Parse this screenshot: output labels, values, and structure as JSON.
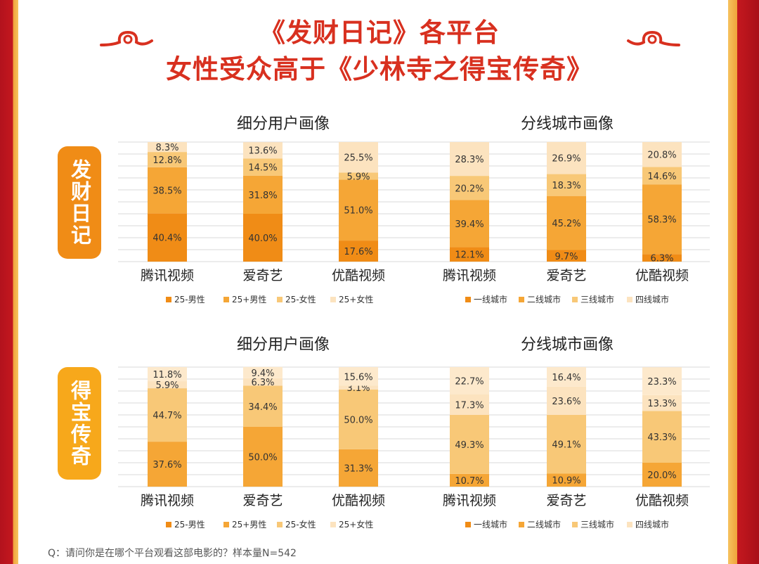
{
  "title": {
    "line1": "《发财日记》各平台",
    "line2": "女性受众高于《少林寺之得宝传奇》"
  },
  "films": [
    {
      "name": "发财日记",
      "color": "#f08c16"
    },
    {
      "name": "得宝传奇",
      "color": "#f7a81b"
    }
  ],
  "palette": [
    "#f08c16",
    "#f5a636",
    "#f8c877",
    "#fce3bf"
  ],
  "legend_colors": [
    "#f08c16",
    "#f5a636",
    "#f8c877",
    "#fce3bf"
  ],
  "footnote": "Q：请问你是在哪个平台观看这部电影的？样本量N=542",
  "chart_data": [
    {
      "type": "bar",
      "stacked": true,
      "title": "细分用户画像",
      "film": "发财日记",
      "categories": [
        "腾讯视频",
        "爱奇艺",
        "优酷视频"
      ],
      "series": [
        {
          "name": "25-男性",
          "values": [
            40.4,
            40.0,
            17.6
          ]
        },
        {
          "name": "25+男性",
          "values": [
            38.5,
            31.8,
            51.0
          ]
        },
        {
          "name": "25-女性",
          "values": [
            12.8,
            14.5,
            5.9
          ]
        },
        {
          "name": "25+女性",
          "values": [
            8.3,
            13.6,
            25.5
          ]
        }
      ],
      "labels": [
        [
          "40.4%",
          "38.5%",
          "12.8%",
          "8.3%"
        ],
        [
          "40.0%",
          "31.8%",
          "14.5%",
          "13.6%"
        ],
        [
          "17.6%",
          "51.0%",
          "5.9%",
          "25.5%"
        ]
      ],
      "ylim": [
        0,
        100
      ],
      "grid": true,
      "legend": "bottom"
    },
    {
      "type": "bar",
      "stacked": true,
      "title": "分线城市画像",
      "film": "发财日记",
      "categories": [
        "腾讯视频",
        "爱奇艺",
        "优酷视频"
      ],
      "series": [
        {
          "name": "一线城市",
          "values": [
            12.1,
            9.7,
            6.3
          ]
        },
        {
          "name": "二线城市",
          "values": [
            39.4,
            45.2,
            58.3
          ]
        },
        {
          "name": "三线城市",
          "values": [
            20.2,
            18.3,
            14.6
          ]
        },
        {
          "name": "四线城市",
          "values": [
            28.3,
            26.9,
            20.8
          ]
        }
      ],
      "labels": [
        [
          "12.1%",
          "39.4%",
          "20.2%",
          "28.3%"
        ],
        [
          "9.7%",
          "45.2%",
          "18.3%",
          "26.9%"
        ],
        [
          "6.3%",
          "58.3%",
          "14.6%",
          "20.8%"
        ]
      ],
      "ylim": [
        0,
        100
      ],
      "grid": true,
      "legend": "bottom"
    },
    {
      "type": "bar",
      "stacked": true,
      "title": "细分用户画像",
      "film": "得宝传奇",
      "categories": [
        "腾讯视频",
        "爱奇艺",
        "优酷视频"
      ],
      "series": [
        {
          "name": "25-男性",
          "values": [
            0,
            0,
            0
          ]
        },
        {
          "name": "25+男性",
          "values": [
            37.6,
            50.0,
            31.3
          ]
        },
        {
          "name": "25-女性",
          "values": [
            44.7,
            34.4,
            50.0
          ]
        },
        {
          "name": "25+女性",
          "values": [
            5.9,
            6.3,
            3.1
          ]
        },
        {
          "name": "",
          "values": [
            11.8,
            9.4,
            15.6
          ]
        }
      ],
      "labels": [
        [
          "",
          "37.6%",
          "44.7%",
          "5.9%",
          "11.8%"
        ],
        [
          "",
          "50.0%",
          "34.4%",
          "6.3%",
          "9.4%"
        ],
        [
          "",
          "31.3%",
          "50.0%",
          "3.1%",
          "15.6%"
        ]
      ],
      "legend_series": [
        "25-男性",
        "25+男性",
        "25-女性",
        "25+女性"
      ],
      "ylim": [
        0,
        100
      ],
      "grid": true,
      "legend": "bottom"
    },
    {
      "type": "bar",
      "stacked": true,
      "title": "分线城市画像",
      "film": "得宝传奇",
      "categories": [
        "腾讯视频",
        "爱奇艺",
        "优酷视频"
      ],
      "series": [
        {
          "name": "一线城市",
          "values": [
            0,
            0,
            0
          ]
        },
        {
          "name": "二线城市",
          "values": [
            10.7,
            10.9,
            20.0
          ]
        },
        {
          "name": "三线城市",
          "values": [
            49.3,
            49.1,
            43.3
          ]
        },
        {
          "name": "四线城市",
          "values": [
            17.3,
            23.6,
            13.3
          ]
        },
        {
          "name": "",
          "values": [
            22.7,
            16.4,
            23.3
          ]
        }
      ],
      "labels": [
        [
          "",
          "10.7%",
          "49.3%",
          "17.3%",
          "22.7%"
        ],
        [
          "",
          "10.9%",
          "49.1%",
          "23.6%",
          "16.4%"
        ],
        [
          "",
          "20.0%",
          "43.3%",
          "13.3%",
          "23.3%"
        ]
      ],
      "legend_series": [
        "一线城市",
        "二线城市",
        "三线城市",
        "四线城市"
      ],
      "ylim": [
        0,
        100
      ],
      "grid": true,
      "legend": "bottom"
    }
  ]
}
